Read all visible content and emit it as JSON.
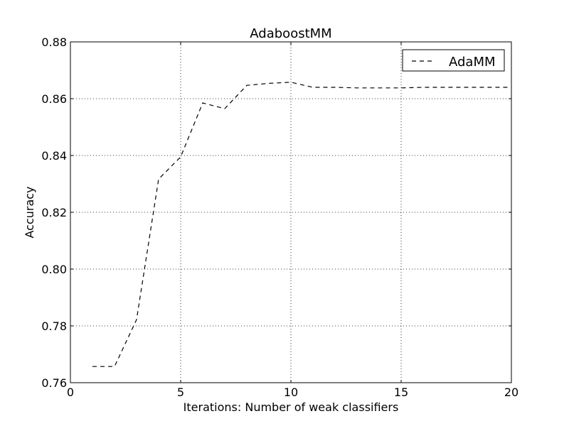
{
  "chart_data": {
    "type": "line",
    "title": "AdaboostMM",
    "xlabel": "Iterations: Number of weak classifiers",
    "ylabel": "Accuracy",
    "xlim": [
      0,
      20
    ],
    "ylim": [
      0.76,
      0.88
    ],
    "xticks": [
      0,
      5,
      10,
      15,
      20
    ],
    "yticks": [
      0.76,
      0.78,
      0.8,
      0.82,
      0.84,
      0.86,
      0.88
    ],
    "xtick_labels": [
      "0",
      "5",
      "10",
      "15",
      "20"
    ],
    "ytick_labels": [
      "0.76",
      "0.78",
      "0.80",
      "0.82",
      "0.84",
      "0.86",
      "0.88"
    ],
    "grid": true,
    "legend_position": "top-right",
    "series": [
      {
        "name": "AdaMM",
        "line_style": "dashed",
        "color": "#000000",
        "x": [
          1,
          2,
          3,
          4,
          5,
          6,
          7,
          8,
          9,
          10,
          11,
          12,
          13,
          14,
          15,
          16,
          17,
          18,
          19,
          20
        ],
        "y": [
          0.7657,
          0.7657,
          0.7822,
          0.8317,
          0.8395,
          0.8585,
          0.8565,
          0.8647,
          0.8654,
          0.8658,
          0.864,
          0.864,
          0.8638,
          0.8638,
          0.8638,
          0.864,
          0.864,
          0.864,
          0.864,
          0.864
        ]
      }
    ]
  }
}
